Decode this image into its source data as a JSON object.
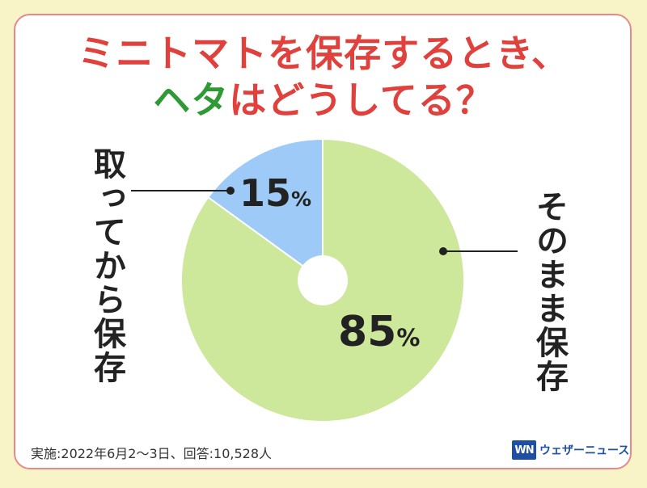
{
  "title": {
    "line1": "ミニトマトを保存するとき、",
    "line2_highlight": "ヘタ",
    "line2_rest": "はどうしてる？"
  },
  "colors": {
    "background": "#f9f4c8",
    "border": "#e8888a",
    "title_red": "#e0413c",
    "title_green": "#2f9a35",
    "slice_keep": "#cde79b",
    "slice_remove": "#9dcaf7"
  },
  "chart_data": {
    "type": "pie",
    "title": "ミニトマトを保存するとき、ヘタはどうしてる？",
    "slices": [
      {
        "name": "そのまま保存",
        "value": 85,
        "label": "85%"
      },
      {
        "name": "取ってから保存",
        "value": 15,
        "label": "15%"
      }
    ]
  },
  "labels": {
    "left": "取ってから保存",
    "right": "そのまま保存"
  },
  "footnote": "実施:2022年6月2〜3日、回答:10,528人",
  "brand": {
    "logo_text": "WN",
    "name": "ウェザーニュース"
  }
}
